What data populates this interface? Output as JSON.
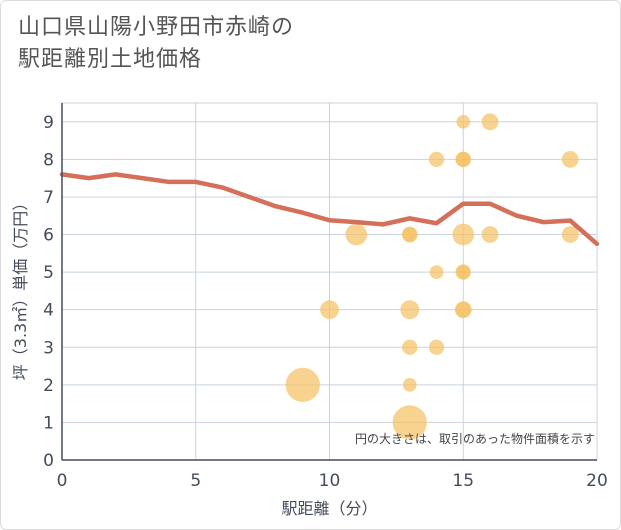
{
  "chart_data": {
    "type": "scatter",
    "title_line1": "山口県山陽小野田市赤崎の",
    "title_line2": "駅距離別土地価格",
    "xlabel": "駅距離（分）",
    "ylabel": "坪（3.3㎡）単価（万円）",
    "xlim": [
      0,
      20
    ],
    "ylim": [
      0,
      9.5
    ],
    "xticks": [
      0,
      5,
      10,
      15,
      20
    ],
    "yticks": [
      0,
      1,
      2,
      3,
      4,
      5,
      6,
      7,
      8,
      9
    ],
    "note": "円の大きさは、取引のあった物件面積を示す",
    "colors": {
      "bubble": "#f5c064",
      "line": "#d4705a",
      "grid": "#c9d3e0"
    },
    "bubbles": [
      {
        "x": 9,
        "y": 2,
        "size": 5
      },
      {
        "x": 10,
        "y": 4,
        "size": 1.5
      },
      {
        "x": 11,
        "y": 6,
        "size": 2
      },
      {
        "x": 13,
        "y": 6,
        "size": 1
      },
      {
        "x": 13,
        "y": 6,
        "size": 1
      },
      {
        "x": 13,
        "y": 4,
        "size": 1.5
      },
      {
        "x": 13,
        "y": 3,
        "size": 1
      },
      {
        "x": 13,
        "y": 2,
        "size": 0.8
      },
      {
        "x": 13,
        "y": 1,
        "size": 5
      },
      {
        "x": 14,
        "y": 8,
        "size": 1
      },
      {
        "x": 14,
        "y": 5,
        "size": 0.8
      },
      {
        "x": 14,
        "y": 3,
        "size": 1
      },
      {
        "x": 15,
        "y": 9,
        "size": 0.8
      },
      {
        "x": 15,
        "y": 8,
        "size": 1
      },
      {
        "x": 15,
        "y": 8,
        "size": 1
      },
      {
        "x": 15,
        "y": 6,
        "size": 2
      },
      {
        "x": 15,
        "y": 5,
        "size": 1
      },
      {
        "x": 15,
        "y": 5,
        "size": 0.8
      },
      {
        "x": 15,
        "y": 4,
        "size": 1
      },
      {
        "x": 15,
        "y": 4,
        "size": 1.2
      },
      {
        "x": 16,
        "y": 9,
        "size": 1.2
      },
      {
        "x": 16,
        "y": 6,
        "size": 1.2
      },
      {
        "x": 19,
        "y": 8,
        "size": 1.2
      },
      {
        "x": 19,
        "y": 6,
        "size": 1.2
      }
    ],
    "line": {
      "x": [
        0,
        1,
        2,
        3,
        4,
        5,
        6,
        7,
        8,
        9,
        10,
        11,
        12,
        13,
        14,
        15,
        16,
        17,
        18,
        19,
        20
      ],
      "y": [
        7.6,
        7.5,
        7.6,
        7.5,
        7.4,
        7.4,
        7.25,
        7.0,
        6.75,
        6.58,
        6.38,
        6.33,
        6.27,
        6.43,
        6.3,
        6.82,
        6.82,
        6.5,
        6.33,
        6.37,
        5.75
      ]
    }
  }
}
